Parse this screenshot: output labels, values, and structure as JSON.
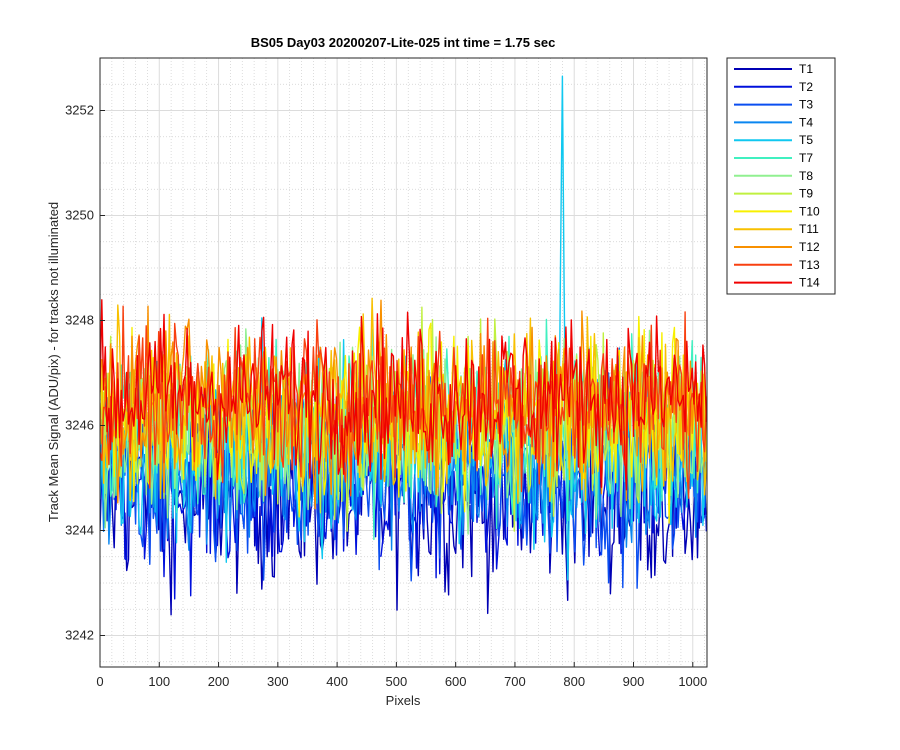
{
  "chart_data": {
    "type": "line",
    "title": "BS05 Day03 20200207-Lite-025 int time = 1.75 sec",
    "xlabel": "Pixels",
    "ylabel": "Track Mean Signal (ADU/pix) - for tracks not illuminated",
    "xlim": [
      0,
      1024
    ],
    "ylim": [
      3241.4,
      3253
    ],
    "xticks": [
      0,
      100,
      200,
      300,
      400,
      500,
      600,
      700,
      800,
      900,
      1000
    ],
    "yticks": [
      3242,
      3244,
      3246,
      3248,
      3250,
      3252
    ],
    "grid": true,
    "minor_grid": true,
    "legend_position": "outside-top-right",
    "series": [
      {
        "name": "T1",
        "color": "#0000b4",
        "baseline": 3244.6,
        "noise": 0.85
      },
      {
        "name": "T2",
        "color": "#0010dc",
        "baseline": 3244.8,
        "noise": 0.85
      },
      {
        "name": "T3",
        "color": "#0a4ef0",
        "baseline": 3245.0,
        "noise": 0.85
      },
      {
        "name": "T4",
        "color": "#0a86f0",
        "baseline": 3245.3,
        "noise": 0.85
      },
      {
        "name": "T5",
        "color": "#10c8f0",
        "baseline": 3245.6,
        "noise": 0.85
      },
      {
        "name": "T7",
        "color": "#40f0c0",
        "baseline": 3245.9,
        "noise": 0.8
      },
      {
        "name": "T8",
        "color": "#90f090",
        "baseline": 3246.0,
        "noise": 0.8
      },
      {
        "name": "T9",
        "color": "#c0f040",
        "baseline": 3246.1,
        "noise": 0.8
      },
      {
        "name": "T10",
        "color": "#f8f000",
        "baseline": 3246.2,
        "noise": 0.8
      },
      {
        "name": "T11",
        "color": "#f8c000",
        "baseline": 3246.3,
        "noise": 0.8
      },
      {
        "name": "T12",
        "color": "#f89000",
        "baseline": 3246.4,
        "noise": 0.8
      },
      {
        "name": "T13",
        "color": "#f84010",
        "baseline": 3246.5,
        "noise": 0.75
      },
      {
        "name": "T14",
        "color": "#f00000",
        "baseline": 3246.6,
        "noise": 0.75
      }
    ],
    "annotations": [
      {
        "series": "T5",
        "x": 780,
        "y": 3253,
        "note": "spike near pixel 780"
      }
    ]
  }
}
